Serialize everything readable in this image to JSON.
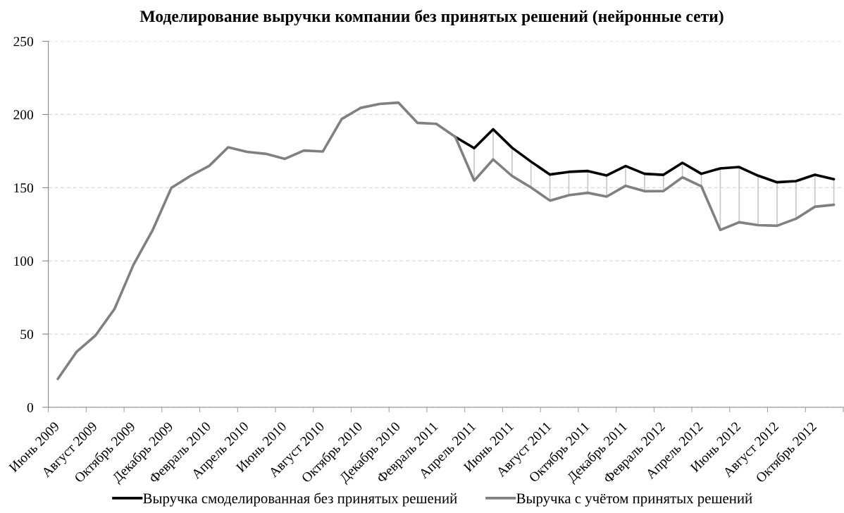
{
  "chart_data": {
    "type": "line",
    "title": "Моделирование выручки компании без принятых решений (нейронные сети)",
    "categories": [
      "Июнь 2009",
      null,
      "Август 2009",
      null,
      "Октябрь 2009",
      null,
      "Декабрь 2009",
      null,
      "Февраль 2010",
      null,
      "Апрель 2010",
      null,
      "Июнь 2010",
      null,
      "Август 2010",
      null,
      "Октябрь 2010",
      null,
      "Декабрь 2010",
      null,
      "Февраль 2011",
      null,
      "Апрель 2011",
      null,
      "Июнь 2011",
      null,
      "Август 2011",
      null,
      "Октябрь 2011",
      null,
      "Декабрь 2011",
      null,
      "Февраль 2012",
      null,
      "Апрель 2012",
      null,
      "Июнь 2012",
      null,
      "Август 2012",
      null,
      "Октябрь 2012",
      null
    ],
    "series": [
      {
        "name": "Выручка смоделированная без принятых решений",
        "color": "#000000",
        "values": [
          null,
          null,
          null,
          null,
          null,
          null,
          null,
          null,
          null,
          null,
          null,
          null,
          null,
          null,
          null,
          null,
          null,
          null,
          null,
          null,
          null,
          184.7,
          177.0,
          189.9,
          177.3,
          167.8,
          159.0,
          160.8,
          161.4,
          158.4,
          164.8,
          159.5,
          158.8,
          167.0,
          159.5,
          163.2,
          164.1,
          158.2,
          153.7,
          154.5,
          158.8,
          155.8
        ],
        "errors": [
          null,
          null,
          null,
          null,
          null,
          null,
          null,
          null,
          null,
          null,
          null,
          null,
          null,
          null,
          null,
          null,
          null,
          null,
          null,
          null,
          null,
          null,
          [
            154.8,
            177.0
          ],
          [
            169.3,
            189.9
          ],
          [
            158.0,
            177.3
          ],
          [
            150.2,
            167.8
          ],
          [
            141.2,
            159.0
          ],
          [
            144.9,
            160.8
          ],
          [
            146.5,
            161.4
          ],
          [
            143.9,
            158.4
          ],
          [
            151.3,
            164.8
          ],
          [
            147.6,
            159.5
          ],
          [
            147.7,
            158.8
          ],
          [
            157.1,
            167.0
          ],
          [
            151.0,
            159.5
          ],
          [
            121.1,
            163.2
          ],
          [
            126.4,
            164.1
          ],
          [
            124.4,
            158.2
          ],
          [
            124.0,
            153.7
          ],
          [
            128.8,
            154.5
          ],
          [
            137.0,
            158.8
          ],
          [
            138.3,
            155.8
          ]
        ]
      },
      {
        "name": "Выручка с учётом принятых решений",
        "color": "#808080",
        "values": [
          19.4,
          38.0,
          49.2,
          67.3,
          97.4,
          120.7,
          149.9,
          158.0,
          164.9,
          177.6,
          174.5,
          173.1,
          169.7,
          175.4,
          174.7,
          196.9,
          204.5,
          207.2,
          208.1,
          194.3,
          193.6,
          184.7,
          154.8,
          169.3,
          158.0,
          150.2,
          141.2,
          144.9,
          146.5,
          143.9,
          151.3,
          147.6,
          147.7,
          157.1,
          151.0,
          121.1,
          126.4,
          124.4,
          124.0,
          128.8,
          137.0,
          138.3
        ]
      }
    ],
    "ylim": [
      0,
      250
    ],
    "yticks": [
      0,
      50,
      100,
      150,
      200,
      250
    ],
    "grid": "y",
    "legend": "bottom"
  }
}
